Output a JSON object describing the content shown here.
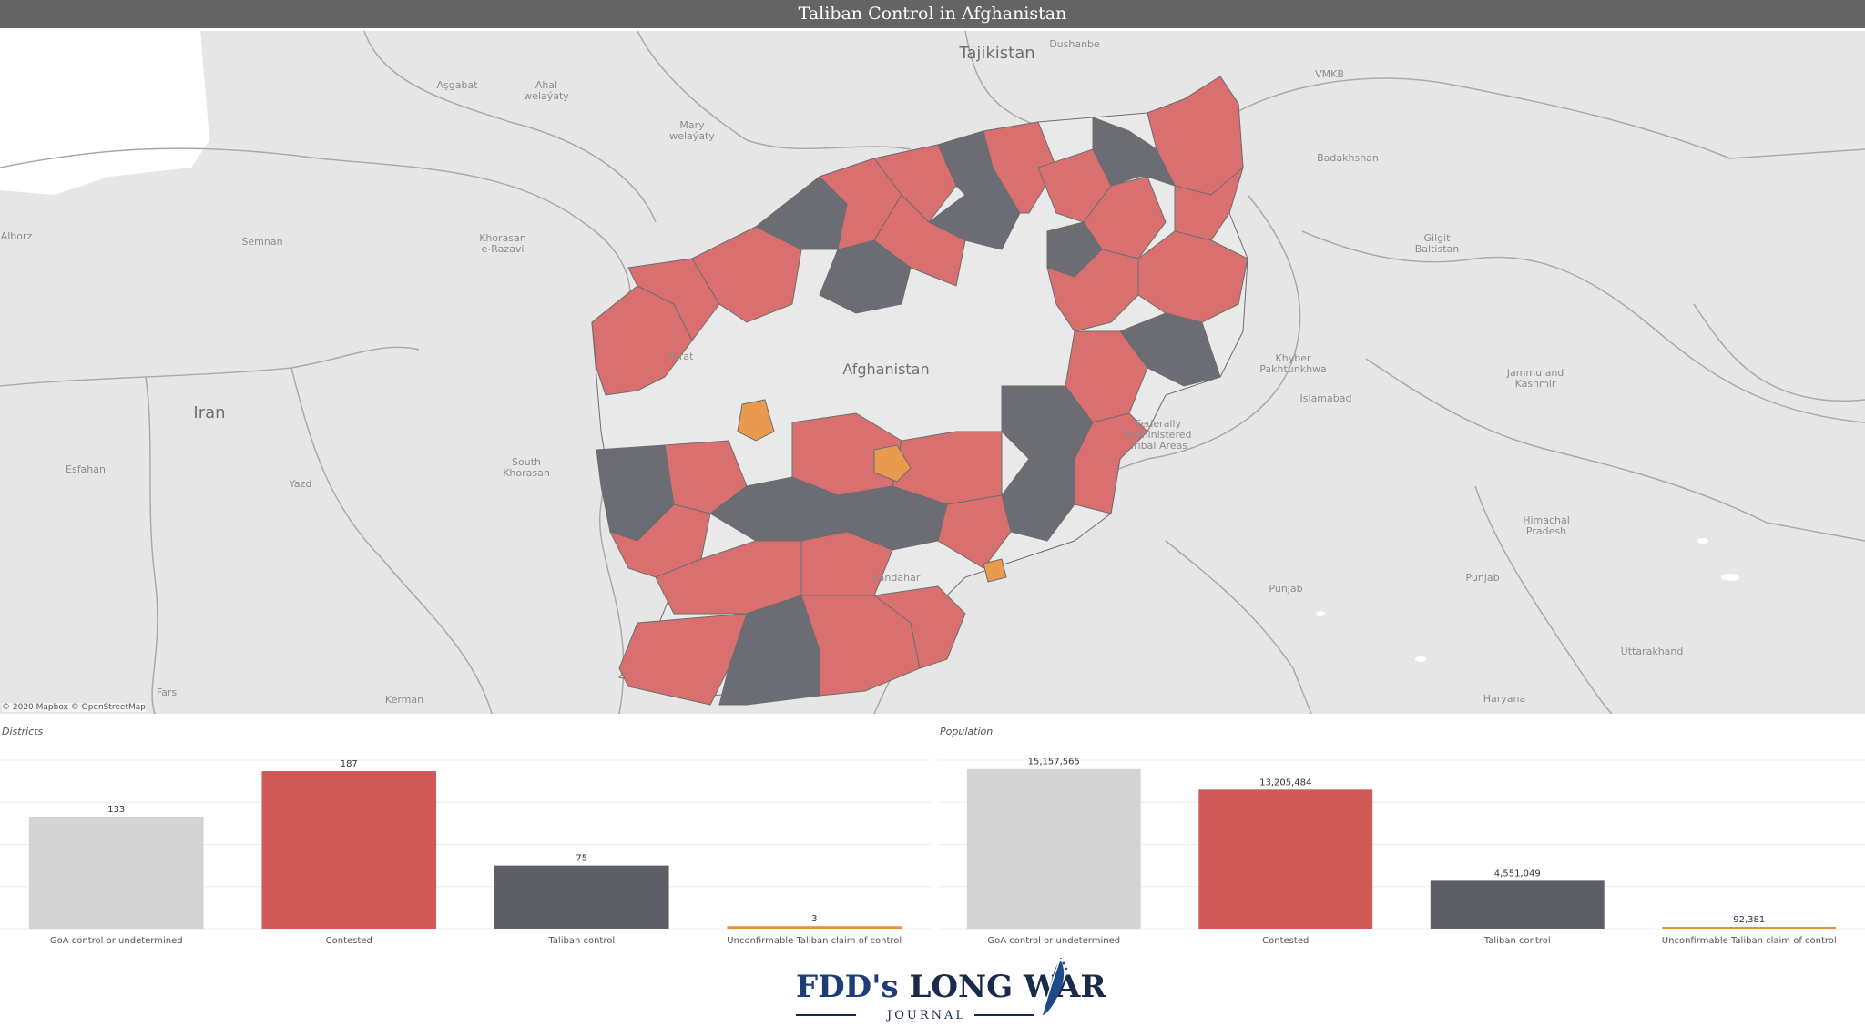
{
  "header": {
    "title": "Taliban Control in Afghanistan"
  },
  "map": {
    "colors": {
      "goa": "#e9e9e9",
      "contested": "#d9706f",
      "taliban": "#6b6c74",
      "unconfirmable": "#e89a4f",
      "background": "#e6e6e6",
      "borders": "#a8a8a8"
    },
    "labels": {
      "tajikistan": "Tajikistan",
      "afghanistan": "Afghanistan",
      "iran": "Iran",
      "dushanbe": "Dushanbe",
      "vmkb": "VMKB",
      "ashgabat": "Aşgabat",
      "ahal": "Ahal\nwelaýaty",
      "mary": "Mary\nwelaýaty",
      "badakhshan": "Badakhshan",
      "semnan": "Semnan",
      "alborz": "Alborz",
      "khorasan_razavi": "Khorasan\ne-Razavi",
      "gilgit": "Gilgit\nBaltistan",
      "hirat": "Hirat",
      "khyber": "Khyber\nPakhtunkhwa",
      "islamabad": "Islamabad",
      "jammu": "Jammu and\nKashmir",
      "fata": "Federally\nAdministered\nTribal Areas",
      "esfahan": "Esfahan",
      "yazd": "Yazd",
      "south_khorasan": "South\nKhorasan",
      "himachal": "Himachal\nPradesh",
      "kandahar": "Kandahar",
      "punjab_pk": "Punjab",
      "punjab_in": "Punjab",
      "uttarakhand": "Uttarakhand",
      "haryana": "Haryana",
      "fars": "Fars",
      "kerman": "Kerman"
    },
    "attribution": "© 2020 Mapbox © OpenStreetMap"
  },
  "chart_data": [
    {
      "type": "bar",
      "title": "Districts",
      "categories": [
        "GoA control or undetermined",
        "Contested",
        "Taliban control",
        "Unconfirmable Taliban claim of control"
      ],
      "values": [
        133,
        187,
        75,
        3
      ],
      "value_labels": [
        "133",
        "187",
        "75",
        "3"
      ],
      "colors": [
        "#d3d3d3",
        "#d15a58",
        "#5d5e66",
        "#e8903c"
      ],
      "ylim": [
        0,
        200
      ],
      "grid": true
    },
    {
      "type": "bar",
      "title": "Population",
      "categories": [
        "GoA control or undetermined",
        "Contested",
        "Taliban control",
        "Unconfirmable Taliban claim of control"
      ],
      "values": [
        15157565,
        13205484,
        4551049,
        92381
      ],
      "value_labels": [
        "15,157,565",
        "13,205,484",
        "4,551,049",
        "92,381"
      ],
      "colors": [
        "#d3d3d3",
        "#d15a58",
        "#5d5e66",
        "#e8903c"
      ],
      "ylim": [
        0,
        16000000
      ],
      "grid": true
    }
  ],
  "logo": {
    "fdd": "FDD's",
    "main": " LONG WAR",
    "sub": "JOURNAL"
  }
}
